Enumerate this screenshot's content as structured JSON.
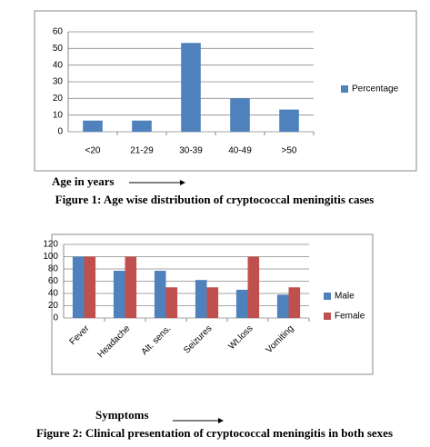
{
  "chart_data": [
    {
      "type": "bar",
      "categories": [
        "<20",
        "21-29",
        "30-39",
        "40-49",
        ">50"
      ],
      "series": [
        {
          "name": "Percentage",
          "color": "#4f81bd",
          "values": [
            6.7,
            6.7,
            53.3,
            20,
            13.3
          ]
        }
      ],
      "ylim": [
        0,
        60
      ],
      "yticks": [
        0,
        10,
        20,
        30,
        40,
        50,
        60
      ],
      "grid": true,
      "legend": "right",
      "xlabel": "Age in years",
      "caption": "Figure 1: Age wise distribution of cryptococcal meningitis cases"
    },
    {
      "type": "bar",
      "categories": [
        "Fever",
        "Headache",
        "Alt. sens.",
        "Seizures",
        "Wt.loss",
        "Vomiting"
      ],
      "series": [
        {
          "name": "Male",
          "color": "#4f81bd",
          "values": [
            100,
            77,
            77,
            62,
            46,
            38
          ]
        },
        {
          "name": "Female",
          "color": "#c0504d",
          "values": [
            100,
            100,
            50,
            50,
            100,
            50
          ]
        }
      ],
      "ylim": [
        0,
        120
      ],
      "yticks": [
        0,
        20,
        40,
        60,
        80,
        100,
        120
      ],
      "grid": true,
      "legend": "right",
      "xtick_rotation": -45,
      "xlabel": "Symptoms",
      "caption": "Figure 2: Clinical presentation of cryptococcal meningitis in both sexes"
    }
  ]
}
